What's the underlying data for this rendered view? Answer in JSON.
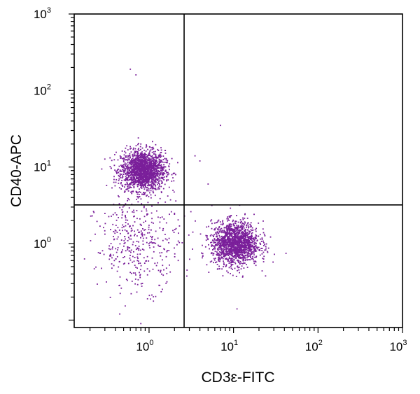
{
  "chart_data": {
    "type": "scatter",
    "xlabel": "CD3ε-FITC",
    "ylabel": "CD40-APC",
    "x_scale": "log",
    "y_scale": "log",
    "xlim": [
      0.13,
      1000
    ],
    "ylim": [
      0.08,
      1000
    ],
    "x_ticks": [
      {
        "value": 1,
        "base": "10",
        "exp": "0"
      },
      {
        "value": 10,
        "base": "10",
        "exp": "1"
      },
      {
        "value": 100,
        "base": "10",
        "exp": "2"
      },
      {
        "value": 1000,
        "base": "10",
        "exp": "3"
      }
    ],
    "y_ticks": [
      {
        "value": 1,
        "base": "10",
        "exp": "0"
      },
      {
        "value": 10,
        "base": "10",
        "exp": "1"
      },
      {
        "value": 100,
        "base": "10",
        "exp": "2"
      },
      {
        "value": 1000,
        "base": "10",
        "exp": "3"
      }
    ],
    "quadrant_gates": {
      "x": 2.6,
      "y": 3.2
    },
    "point_color": "#7a1f9a",
    "grid": false,
    "legend": "none",
    "clusters": [
      {
        "name": "",
        "center": [
          0.85,
          9.0
        ],
        "spread_log10": [
          0.13,
          0.13
        ],
        "count": 1800
      },
      {
        "name": "",
        "center": [
          10.5,
          1.0
        ],
        "spread_log10": [
          0.14,
          0.14
        ],
        "count": 1600
      },
      {
        "name": "",
        "center": [
          0.75,
          1.0
        ],
        "spread_log10": [
          0.25,
          0.3
        ],
        "count": 400
      }
    ],
    "outlier_points": [
      [
        0.6,
        190
      ],
      [
        0.7,
        160
      ],
      [
        0.8,
        20
      ],
      [
        7,
        35
      ],
      [
        4,
        12
      ],
      [
        3.5,
        14
      ],
      [
        5,
        6
      ],
      [
        0.45,
        0.12
      ],
      [
        0.8,
        0.09
      ],
      [
        11,
        0.14
      ]
    ]
  }
}
